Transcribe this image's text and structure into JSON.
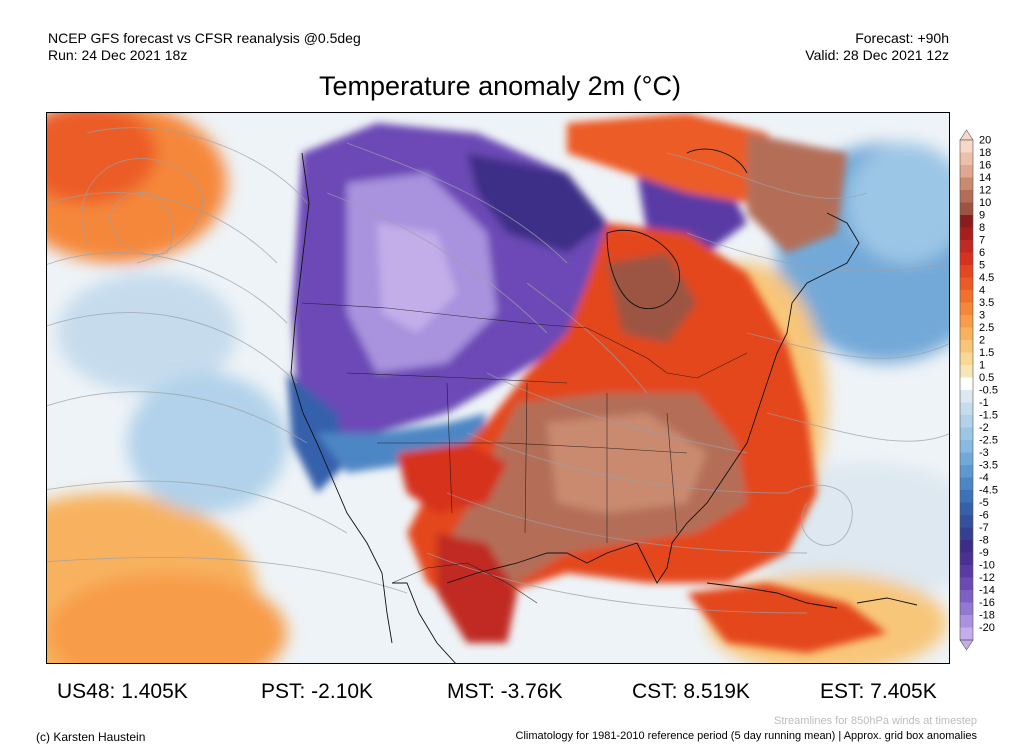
{
  "header": {
    "model_line": "NCEP GFS forecast vs CFSR reanalysis @0.5deg",
    "run_line": "Run: 24 Dec 2021 18z",
    "forecast_line": "Forecast: +90h",
    "valid_line": "Valid: 28 Dec 2021 12z"
  },
  "title": "Temperature anomaly 2m (°C)",
  "colorbar": {
    "labels": [
      "20",
      "18",
      "16",
      "14",
      "12",
      "10",
      "9",
      "8",
      "7",
      "6",
      "5",
      "4.5",
      "4",
      "3.5",
      "3",
      "2.5",
      "2",
      "1.5",
      "1",
      "0.5",
      "-0.5",
      "-1",
      "-1.5",
      "-2",
      "-2.5",
      "-3",
      "-3.5",
      "-4",
      "-4.5",
      "-5",
      "-6",
      "-7",
      "-8",
      "-9",
      "-10",
      "-12",
      "-14",
      "-16",
      "-18",
      "-20"
    ],
    "colors": [
      "#f7d8c8",
      "#ecbfa8",
      "#dea78f",
      "#c98a70",
      "#b46e58",
      "#9c5442",
      "#8a1c1c",
      "#a61e1e",
      "#c02a22",
      "#d6321f",
      "#e4461f",
      "#ec5b25",
      "#f2702e",
      "#f5873a",
      "#f79c49",
      "#f8b25f",
      "#f8c679",
      "#f8d797",
      "#f8e6b8",
      "#ffffff",
      "#dde8f0",
      "#c6dced",
      "#b1d2ea",
      "#9cc6e6",
      "#88b9e0",
      "#73a9d8",
      "#5f98cf",
      "#4d86c4",
      "#3e72b8",
      "#3660ac",
      "#34509f",
      "#373f93",
      "#3d2d87",
      "#4a2f95",
      "#5a3aa6",
      "#6c4ab6",
      "#7e60c4",
      "#9378d2",
      "#a992de",
      "#c3aeea"
    ]
  },
  "stats": [
    {
      "label": "US48: 1.405K"
    },
    {
      "label": "PST: -2.10K"
    },
    {
      "label": "MST: -3.76K"
    },
    {
      "label": "CST: 8.519K"
    },
    {
      "label": "EST: 7.405K"
    }
  ],
  "footer": {
    "streamlines_note": "Streamlines for 850hPa winds at timestep",
    "copyright": "(c) Karsten Haustein",
    "climatology_note": "Climatology for 1981-2010 reference period (5 day running mean) | Approx. grid box anomalies"
  }
}
